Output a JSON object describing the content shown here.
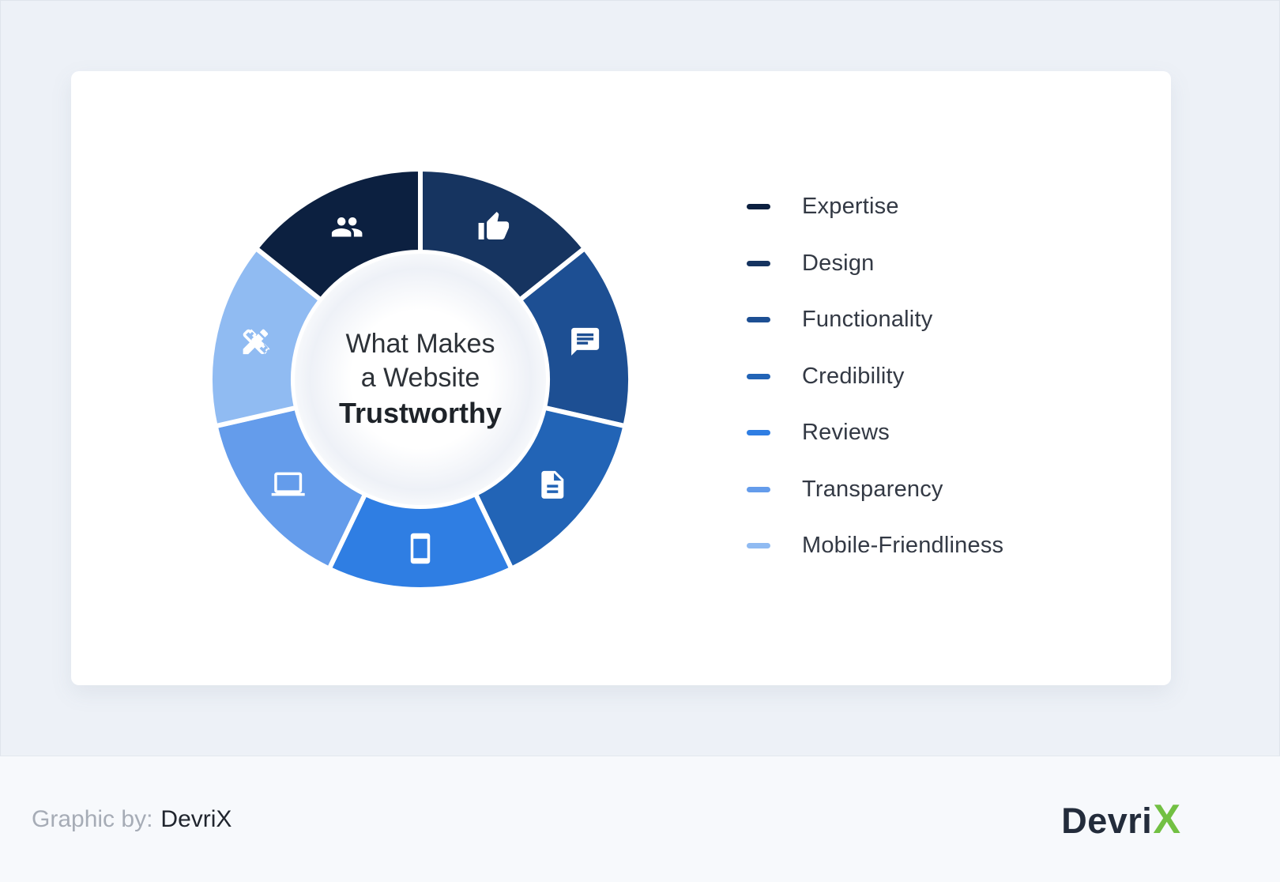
{
  "page": {
    "background_color": "#edf1f7",
    "card_color": "#ffffff"
  },
  "chart_data": {
    "type": "pie",
    "donut": true,
    "title": "What Makes a Website Trustworthy",
    "center_lines": [
      "What Makes",
      "a Website",
      "Trustworthy"
    ],
    "legend_position": "right",
    "segments": [
      {
        "label": "Expertise",
        "value": 1,
        "color": "#0c2040",
        "icon": "users-icon",
        "position": 6
      },
      {
        "label": "Design",
        "value": 1,
        "color": "#163460",
        "icon": "thumbs-up-icon",
        "position": 0
      },
      {
        "label": "Functionality",
        "value": 1,
        "color": "#1d4f93",
        "icon": "chat-icon",
        "position": 1
      },
      {
        "label": "Credibility",
        "value": 1,
        "color": "#2264b6",
        "icon": "document-icon",
        "position": 2
      },
      {
        "label": "Reviews",
        "value": 1,
        "color": "#2f7ee3",
        "icon": "phone-icon",
        "position": 3
      },
      {
        "label": "Transparency",
        "value": 1,
        "color": "#649ceb",
        "icon": "laptop-icon",
        "position": 4
      },
      {
        "label": "Mobile-Friendliness",
        "value": 1,
        "color": "#90bbf2",
        "icon": "pencil-ruler-icon",
        "position": 5
      }
    ]
  },
  "footer": {
    "credit_label": "Graphic by:",
    "credit_name": "DevriX",
    "logo_text": "Devri",
    "logo_x": "X",
    "logo_text_color": "#232c3b",
    "logo_x_color": "#72c043"
  }
}
